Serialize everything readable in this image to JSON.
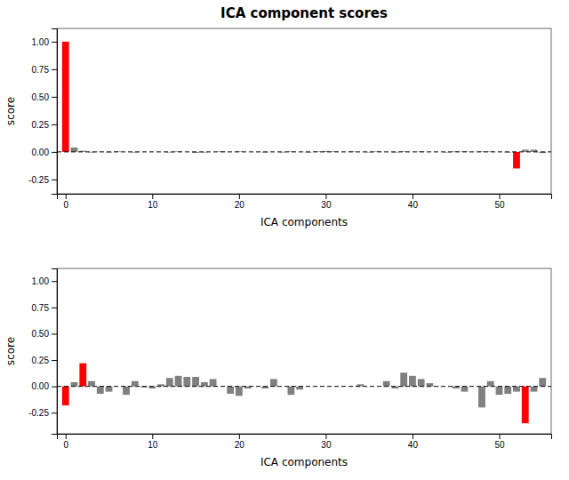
{
  "chart_data": [
    {
      "type": "bar",
      "title": "ICA component scores",
      "xlabel": "ICA components",
      "ylabel": "score",
      "x": [
        0,
        1,
        2,
        3,
        4,
        5,
        6,
        7,
        8,
        9,
        10,
        11,
        12,
        13,
        14,
        15,
        16,
        17,
        18,
        19,
        20,
        21,
        22,
        23,
        24,
        25,
        26,
        27,
        28,
        29,
        30,
        31,
        32,
        33,
        34,
        35,
        36,
        37,
        38,
        39,
        40,
        41,
        42,
        43,
        44,
        45,
        46,
        47,
        48,
        49,
        50,
        51,
        52,
        53,
        54,
        55
      ],
      "values": [
        1.0,
        0.04,
        0.01,
        -0.005,
        0.002,
        -0.005,
        0.005,
        0.0,
        -0.005,
        0.0,
        0.0,
        0.0,
        -0.005,
        0.005,
        0.0,
        -0.008,
        -0.005,
        0.0,
        0.005,
        0.0,
        0.005,
        0.0,
        0.0,
        -0.005,
        0.0,
        -0.005,
        0.005,
        0.0,
        -0.005,
        0.005,
        0.008,
        0.005,
        0.0,
        0.005,
        0.0,
        -0.005,
        0.005,
        0.0,
        -0.005,
        0.005,
        0.0,
        0.005,
        0.0,
        0.0,
        -0.005,
        0.005,
        0.005,
        0.0,
        0.005,
        0.005,
        0.0,
        -0.005,
        -0.15,
        0.02,
        0.02,
        -0.01
      ],
      "colors": [
        "#ff0000",
        "#808080",
        "#808080",
        "#808080",
        "#808080",
        "#808080",
        "#808080",
        "#808080",
        "#808080",
        "#808080",
        "#808080",
        "#808080",
        "#808080",
        "#808080",
        "#808080",
        "#808080",
        "#808080",
        "#808080",
        "#808080",
        "#808080",
        "#808080",
        "#808080",
        "#808080",
        "#808080",
        "#808080",
        "#808080",
        "#808080",
        "#808080",
        "#808080",
        "#808080",
        "#808080",
        "#808080",
        "#808080",
        "#808080",
        "#808080",
        "#808080",
        "#808080",
        "#808080",
        "#808080",
        "#808080",
        "#808080",
        "#808080",
        "#808080",
        "#808080",
        "#808080",
        "#808080",
        "#808080",
        "#808080",
        "#808080",
        "#808080",
        "#808080",
        "#808080",
        "#ff0000",
        "#808080",
        "#808080",
        "#808080"
      ],
      "xlim": [
        -1,
        56
      ],
      "xticks": [
        0,
        10,
        20,
        30,
        40,
        50
      ],
      "ylim": [
        -0.38,
        1.12
      ],
      "yticks": [
        -0.25,
        {
          "value": 0.0,
          "label": "0.00"
        },
        0.25,
        {
          "value": 0.5,
          "label": "0.50"
        },
        0.75,
        {
          "value": 1.0,
          "label": "1.00"
        }
      ],
      "grid": false
    },
    {
      "type": "bar",
      "xlabel": "ICA components",
      "ylabel": "score",
      "x": [
        0,
        1,
        2,
        3,
        4,
        5,
        6,
        7,
        8,
        9,
        10,
        11,
        12,
        13,
        14,
        15,
        16,
        17,
        18,
        19,
        20,
        21,
        22,
        23,
        24,
        25,
        26,
        27,
        28,
        29,
        30,
        31,
        32,
        33,
        34,
        35,
        36,
        37,
        38,
        39,
        40,
        41,
        42,
        43,
        44,
        45,
        46,
        47,
        48,
        49,
        50,
        51,
        52,
        53,
        54,
        55
      ],
      "values": [
        -0.18,
        0.04,
        0.22,
        0.05,
        -0.07,
        -0.05,
        0.0,
        -0.08,
        0.05,
        -0.01,
        -0.02,
        0.02,
        0.08,
        0.1,
        0.09,
        0.09,
        0.04,
        0.07,
        0.0,
        -0.07,
        -0.09,
        -0.02,
        0.0,
        -0.02,
        0.07,
        0.0,
        -0.08,
        -0.03,
        0.0,
        0.0,
        0.0,
        0.0,
        0.0,
        0.0,
        0.02,
        0.0,
        0.0,
        0.05,
        -0.02,
        0.13,
        0.1,
        0.07,
        0.03,
        0.0,
        0.0,
        -0.02,
        -0.05,
        0.0,
        -0.2,
        0.05,
        -0.08,
        -0.07,
        -0.05,
        -0.35,
        -0.05,
        0.08
      ],
      "colors": [
        "#ff0000",
        "#808080",
        "#ff0000",
        "#808080",
        "#808080",
        "#808080",
        "#808080",
        "#808080",
        "#808080",
        "#808080",
        "#808080",
        "#808080",
        "#808080",
        "#808080",
        "#808080",
        "#808080",
        "#808080",
        "#808080",
        "#808080",
        "#808080",
        "#808080",
        "#808080",
        "#808080",
        "#808080",
        "#808080",
        "#808080",
        "#808080",
        "#808080",
        "#808080",
        "#808080",
        "#808080",
        "#808080",
        "#808080",
        "#808080",
        "#808080",
        "#808080",
        "#808080",
        "#808080",
        "#808080",
        "#808080",
        "#808080",
        "#808080",
        "#808080",
        "#808080",
        "#808080",
        "#808080",
        "#808080",
        "#808080",
        "#808080",
        "#808080",
        "#808080",
        "#808080",
        "#808080",
        "#ff0000",
        "#808080",
        "#808080"
      ],
      "xlim": [
        -1,
        56
      ],
      "xticks": [
        0,
        10,
        20,
        30,
        40,
        50
      ],
      "ylim": [
        -0.45,
        1.12
      ],
      "yticks": [
        -0.25,
        {
          "value": 0.0,
          "label": "0.00"
        },
        0.25,
        {
          "value": 0.5,
          "label": "0.50"
        },
        0.75,
        {
          "value": 1.0,
          "label": "1.00"
        }
      ],
      "grid": false
    }
  ]
}
